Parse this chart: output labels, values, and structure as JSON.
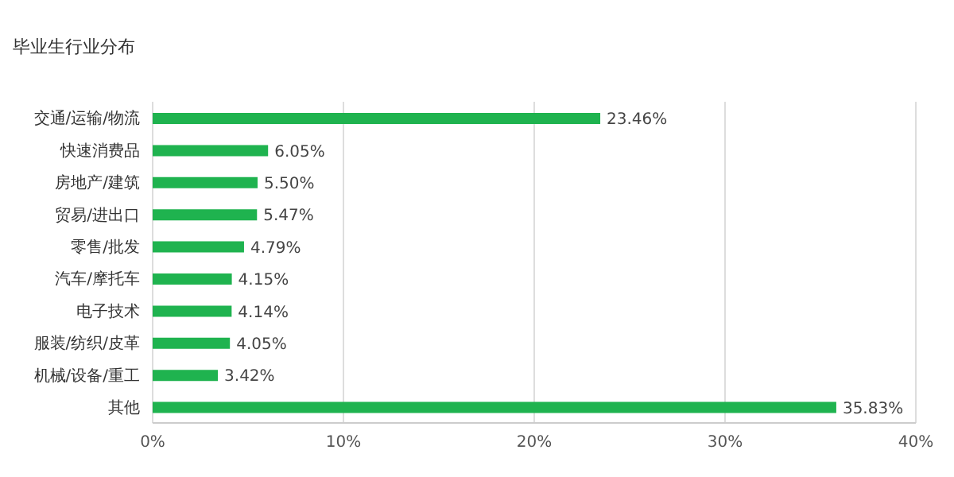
{
  "chart_data": {
    "type": "bar",
    "orientation": "horizontal",
    "title": "毕业生行业分布",
    "categories": [
      "交通/运输/物流",
      "快速消费品",
      "房地产/建筑",
      "贸易/进出口",
      "零售/批发",
      "汽车/摩托车",
      "电子技术",
      "服装/纺织/皮革",
      "机械/设备/重工",
      "其他"
    ],
    "values": [
      23.46,
      6.05,
      5.5,
      5.47,
      4.79,
      4.15,
      4.14,
      4.05,
      3.42,
      35.83
    ],
    "value_labels": [
      "23.46%",
      "6.05%",
      "5.50%",
      "5.47%",
      "4.79%",
      "4.15%",
      "4.14%",
      "4.05%",
      "3.42%",
      "35.83%"
    ],
    "color": "#1fb34f",
    "xlim": [
      0,
      40
    ],
    "xticks": [
      {
        "value": 0,
        "label": "0%"
      },
      {
        "value": 10,
        "label": "10%"
      },
      {
        "value": 20,
        "label": "20%"
      },
      {
        "value": 30,
        "label": "30%"
      },
      {
        "value": 40,
        "label": "40%"
      }
    ],
    "grid": "x"
  }
}
